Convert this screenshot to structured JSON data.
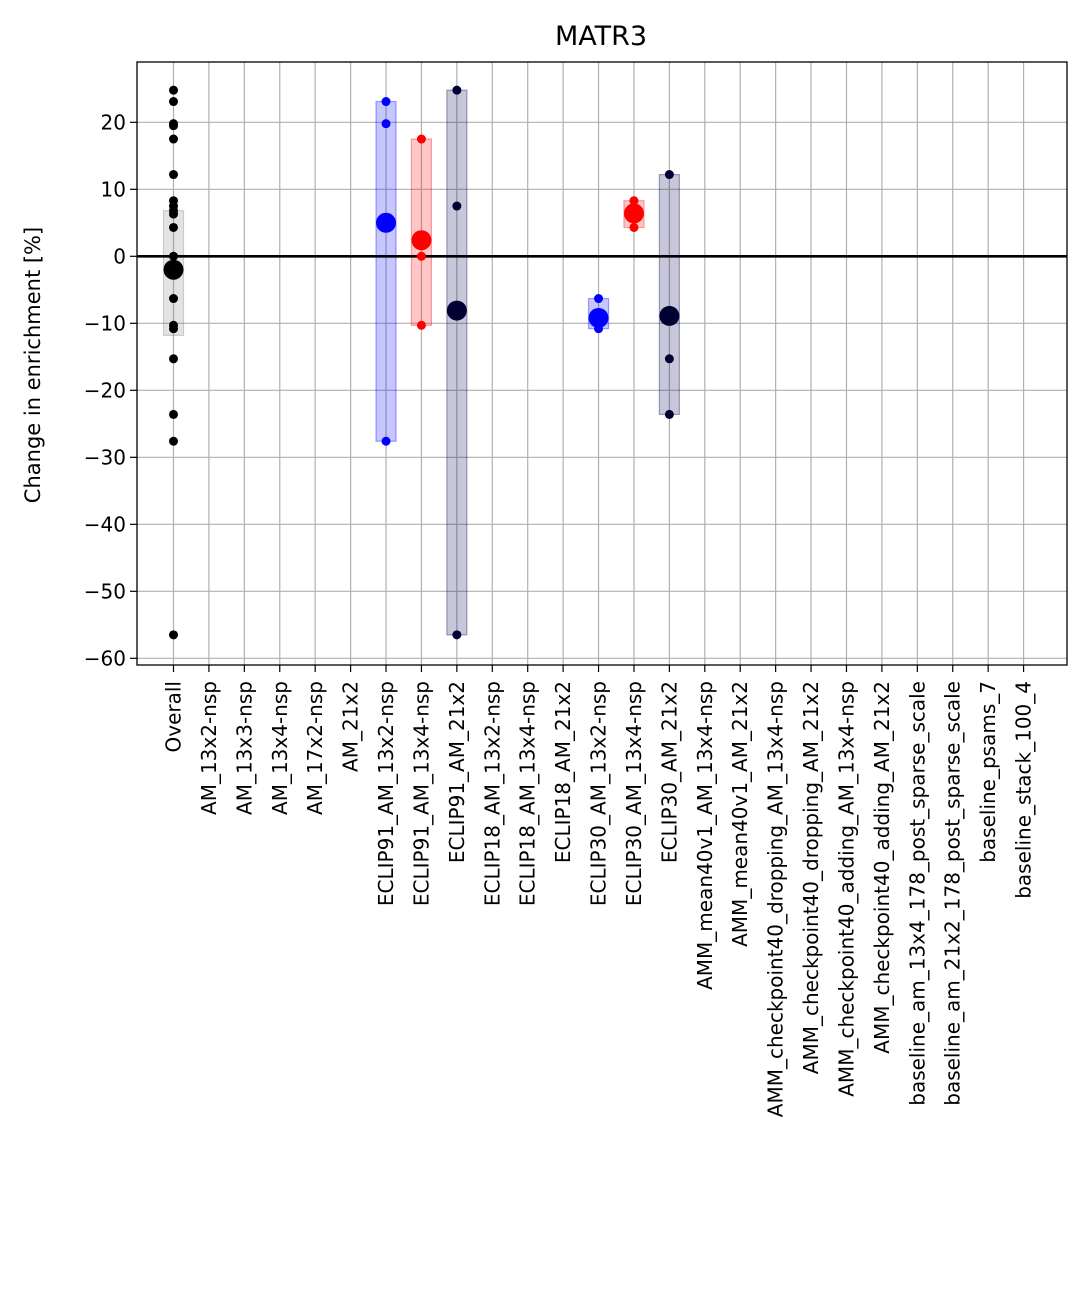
{
  "chart_data": {
    "type": "scatter",
    "title": "MATR3",
    "xlabel": "",
    "ylabel": "Change in enrichment [%]",
    "ylim": [
      -61,
      29
    ],
    "yticks": [
      20,
      10,
      0,
      -10,
      -20,
      -30,
      -40,
      -50,
      -60
    ],
    "ytick_labels": [
      "20",
      "10",
      "0",
      "−10",
      "−20",
      "−30",
      "−40",
      "−50",
      "−60"
    ],
    "grid": true,
    "reference_line_y": 0,
    "categories": [
      "Overall",
      "AM_13x2-nsp",
      "AM_13x3-nsp",
      "AM_13x4-nsp",
      "AM_17x2-nsp",
      "AM_21x2",
      "ECLIP91_AM_13x2-nsp",
      "ECLIP91_AM_13x4-nsp",
      "ECLIP91_AM_21x2",
      "ECLIP18_AM_13x2-nsp",
      "ECLIP18_AM_13x4-nsp",
      "ECLIP18_AM_21x2",
      "ECLIP30_AM_13x2-nsp",
      "ECLIP30_AM_13x4-nsp",
      "ECLIP30_AM_21x2",
      "AMM_mean40v1_AM_13x4-nsp",
      "AMM_mean40v1_AM_21x2",
      "AMM_checkpoint40_dropping_AM_13x4-nsp",
      "AMM_checkpoint40_dropping_AM_21x2",
      "AMM_checkpoint40_adding_AM_13x4-nsp",
      "AMM_checkpoint40_adding_AM_21x2",
      "baseline_am_13x4_178_post_sparse_scale",
      "baseline_am_21x2_178_post_sparse_scale",
      "baseline_psams_7",
      "baseline_stack_100_4"
    ],
    "groups": [
      {
        "category": "Overall",
        "color": "#000000",
        "box_color": "#808080",
        "box": [
          -11.8,
          6.8
        ],
        "mean": -2.0,
        "points": [
          24.8,
          23.1,
          19.8,
          19.5,
          17.5,
          12.2,
          8.3,
          7.5,
          6.8,
          6.3,
          4.3,
          0.0,
          -6.3,
          -10.3,
          -10.8,
          -15.3,
          -23.6,
          -27.6,
          -56.5
        ]
      },
      {
        "category": "ECLIP91_AM_13x2-nsp",
        "color": "#0000ff",
        "box_color": "#0000ff",
        "box": [
          -27.6,
          23.1
        ],
        "mean": 5.0,
        "points": [
          23.1,
          19.8,
          -27.6
        ]
      },
      {
        "category": "ECLIP91_AM_13x4-nsp",
        "color": "#ff0000",
        "box_color": "#ff0000",
        "box": [
          -10.3,
          17.5
        ],
        "mean": 2.4,
        "points": [
          17.5,
          0.0,
          -10.3
        ]
      },
      {
        "category": "ECLIP91_AM_21x2",
        "color": "#000033",
        "box_color": "#000050",
        "box": [
          -56.5,
          24.8
        ],
        "mean": -8.1,
        "points": [
          24.8,
          7.5,
          -56.5
        ]
      },
      {
        "category": "ECLIP30_AM_13x2-nsp",
        "color": "#0000ff",
        "box_color": "#0000ff",
        "box": [
          -10.8,
          -6.3
        ],
        "mean": -9.2,
        "points": [
          -6.3,
          -10.3,
          -10.8
        ]
      },
      {
        "category": "ECLIP30_AM_13x4-nsp",
        "color": "#ff0000",
        "box_color": "#ff0000",
        "box": [
          4.3,
          8.3
        ],
        "mean": 6.4,
        "points": [
          8.3,
          6.8,
          4.3
        ]
      },
      {
        "category": "ECLIP30_AM_21x2",
        "color": "#000033",
        "box_color": "#000050",
        "box": [
          -23.6,
          12.2
        ],
        "mean": -8.9,
        "points": [
          12.2,
          -15.3,
          -23.6
        ]
      }
    ]
  }
}
